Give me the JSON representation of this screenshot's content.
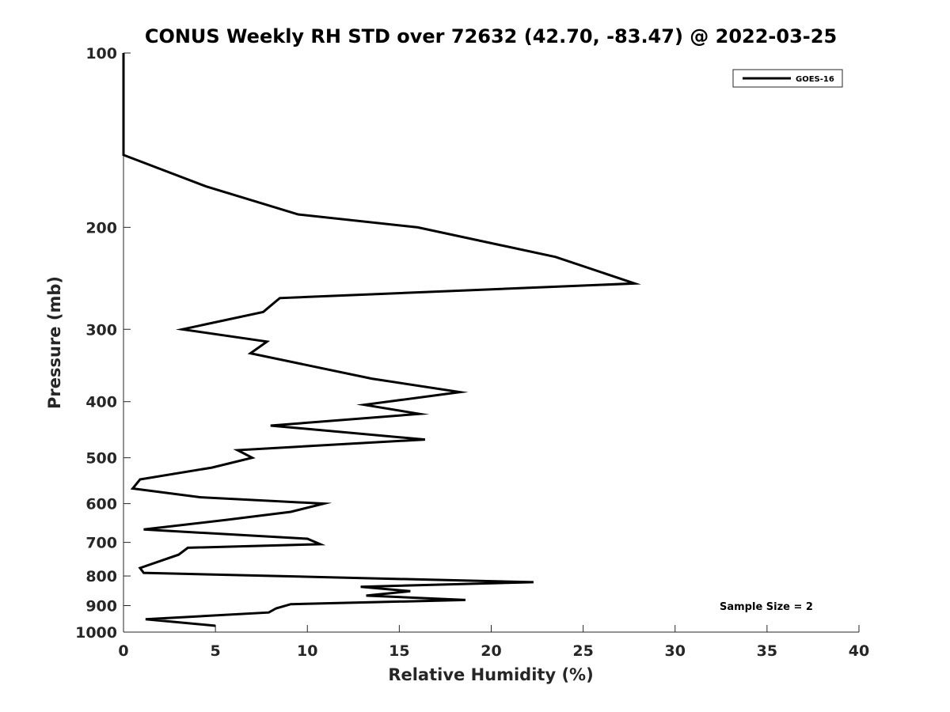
{
  "chart_data": {
    "type": "line",
    "title": "CONUS Weekly RH STD over 72632 (42.70, -83.47) @ 2022-03-25",
    "xlabel": "Relative Humidity (%)",
    "ylabel": "Pressure (mb)",
    "xlim": [
      0,
      40
    ],
    "ylim": [
      100,
      1000
    ],
    "yscale": "log",
    "yreversed": true,
    "x_ticks": [
      0,
      5,
      10,
      15,
      20,
      25,
      30,
      35,
      40
    ],
    "y_ticks": [
      100,
      200,
      300,
      400,
      500,
      600,
      700,
      800,
      900,
      1000
    ],
    "grid": false,
    "legend_position": "top-right",
    "series": [
      {
        "name": "GOES-16",
        "color": "#000000",
        "points": [
          [
            0,
            100
          ],
          [
            0,
            125
          ],
          [
            0,
            150
          ],
          [
            4.5,
            170
          ],
          [
            9.5,
            190
          ],
          [
            16,
            200
          ],
          [
            23.5,
            225
          ],
          [
            27.8,
            250
          ],
          [
            8.5,
            265
          ],
          [
            7.6,
            280
          ],
          [
            3.2,
            300
          ],
          [
            7.8,
            315
          ],
          [
            6.9,
            330
          ],
          [
            13.5,
            365
          ],
          [
            18.3,
            385
          ],
          [
            13.1,
            405
          ],
          [
            16.1,
            420
          ],
          [
            8.0,
            440
          ],
          [
            16.4,
            465
          ],
          [
            6.2,
            485
          ],
          [
            7.0,
            500
          ],
          [
            4.8,
            520
          ],
          [
            0.9,
            545
          ],
          [
            0.5,
            565
          ],
          [
            4.2,
            585
          ],
          [
            10.9,
            600
          ],
          [
            9.1,
            620
          ],
          [
            5.6,
            640
          ],
          [
            1.1,
            665
          ],
          [
            10.0,
            690
          ],
          [
            10.7,
            705
          ],
          [
            3.5,
            715
          ],
          [
            3.0,
            735
          ],
          [
            0.9,
            775
          ],
          [
            1.1,
            790
          ],
          [
            22.3,
            820
          ],
          [
            12.9,
            835
          ],
          [
            15.6,
            850
          ],
          [
            13.2,
            865
          ],
          [
            18.6,
            880
          ],
          [
            9.1,
            895
          ],
          [
            8.3,
            910
          ],
          [
            7.9,
            925
          ],
          [
            1.2,
            950
          ],
          [
            5.0,
            975
          ]
        ]
      }
    ],
    "annotations": [
      {
        "text": "Sample Size = 2"
      }
    ]
  }
}
